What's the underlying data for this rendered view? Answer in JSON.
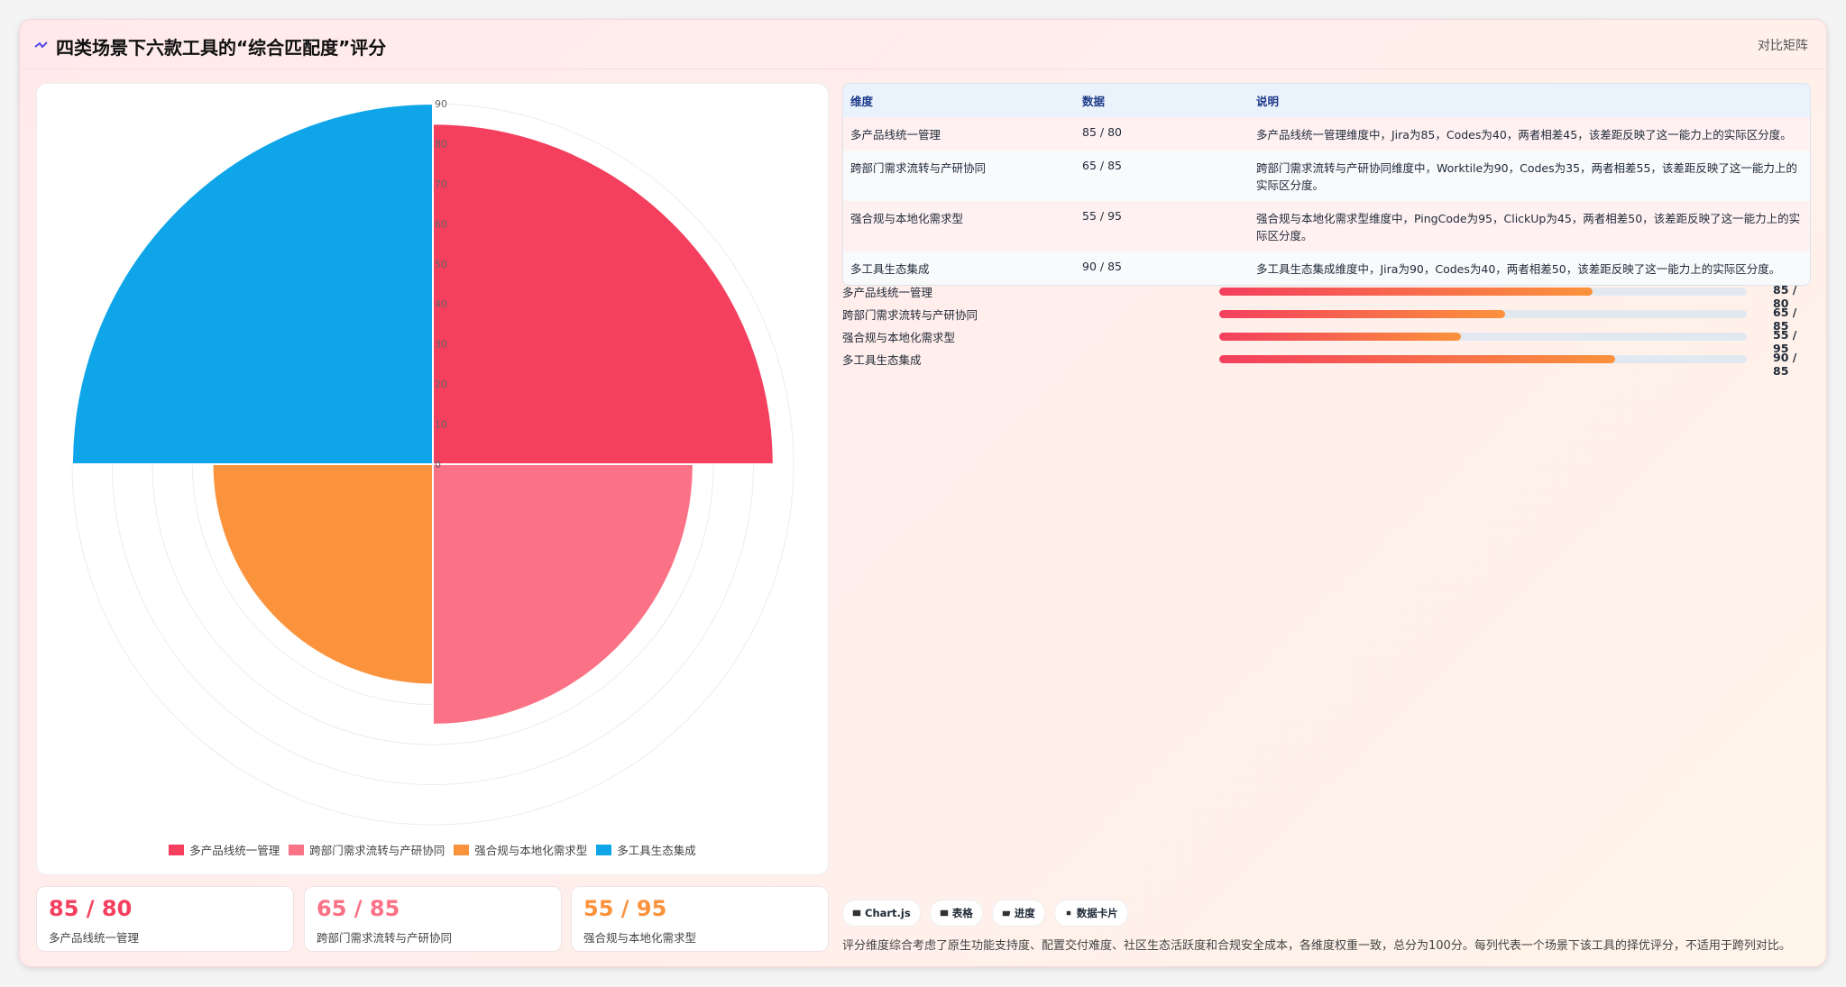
{
  "header": {
    "title": "四类场景下六款工具的“综合匹配度”评分",
    "tag": "对比矩阵"
  },
  "chart_data": {
    "type": "polarArea",
    "categories": [
      "多产品线统一管理",
      "跨部门需求流转与产研协同",
      "强合规与本地化需求型",
      "多工具生态集成"
    ],
    "values": [
      85,
      65,
      55,
      90
    ],
    "colors": [
      "#f43f5e",
      "#fb7185",
      "#fb923c",
      "#0ea5e9"
    ],
    "ylim": [
      0,
      90
    ],
    "yticks": [
      0,
      10,
      20,
      30,
      40,
      50,
      60,
      70,
      80,
      90
    ],
    "grid": true,
    "legend": "bottom"
  },
  "table": {
    "columns": [
      "维度",
      "数据",
      "说明"
    ],
    "rows": [
      [
        "多产品线统一管理",
        "85 / 80",
        "多产品线统一管理维度中，Jira为85，Codes为40，两者相差45，该差距反映了这一能力上的实际区分度。"
      ],
      [
        "跨部门需求流转与产研协同",
        "65 / 85",
        "跨部门需求流转与产研协同维度中，Worktile为90，Codes为35，两者相差55，该差距反映了这一能力上的实际区分度。"
      ],
      [
        "强合规与本地化需求型",
        "55 / 95",
        "强合规与本地化需求型维度中，PingCode为95，ClickUp为45，两者相差50，该差距反映了这一能力上的实际区分度。"
      ],
      [
        "多工具生态集成",
        "90 / 85",
        "多工具生态集成维度中，Jira为90，Codes为40，两者相差50，该差距反映了这一能力上的实际区分度。"
      ]
    ]
  },
  "progress": {
    "xlim": [
      0,
      120
    ],
    "rows": [
      {
        "label": "多产品线统一管理",
        "value": 85,
        "text": "85 / 80"
      },
      {
        "label": "跨部门需求流转与产研协同",
        "value": 65,
        "text": "65 / 85"
      },
      {
        "label": "强合规与本地化需求型",
        "value": 55,
        "text": "55 / 95"
      },
      {
        "label": "多工具生态集成",
        "value": 90,
        "text": "90 / 85"
      }
    ]
  },
  "cards": [
    {
      "value": "85 / 80",
      "label": "多产品线统一管理"
    },
    {
      "value": "65 / 85",
      "label": "跨部门需求流转与产研协同"
    },
    {
      "value": "55 / 95",
      "label": "强合规与本地化需求型"
    }
  ],
  "chips": [
    "Chart.js",
    "表格",
    "进度",
    "数据卡片"
  ],
  "note": "评分维度综合考虑了原生功能支持度、配置交付难度、社区生态活跃度和合规安全成本，各维度权重一致，总分为100分。每列代表一个场景下该工具的择优评分，不适用于跨列对比。"
}
